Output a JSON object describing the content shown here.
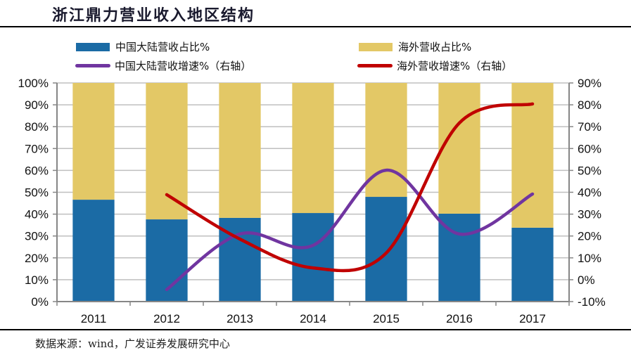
{
  "header": {
    "title": "浙江鼎力营业收入地区结构"
  },
  "footer": {
    "source": "数据来源：wind，广发证券发展研究中心"
  },
  "colors": {
    "mainland_share": "#1B6BA5",
    "overseas_share": "#E3C866",
    "mainland_growth": "#7035A0",
    "overseas_growth": "#C00000",
    "grid": "#BFBFBF",
    "axis": "#868686"
  },
  "chart_data": {
    "type": "bar",
    "title": "浙江鼎力营业收入地区结构",
    "categories": [
      "2011",
      "2012",
      "2013",
      "2014",
      "2015",
      "2016",
      "2017"
    ],
    "stacked": true,
    "series": [
      {
        "name": "中国大陆营收占比%",
        "type": "bar",
        "axis": "left",
        "values": [
          46.6,
          37.6,
          38.3,
          40.5,
          47.9,
          40.2,
          33.8
        ]
      },
      {
        "name": "海外营收占比%",
        "type": "bar",
        "axis": "left",
        "values": [
          53.4,
          62.4,
          61.7,
          59.5,
          52.1,
          59.8,
          66.2
        ]
      },
      {
        "name": "中国大陆营收增速%（右轴）",
        "type": "line",
        "axis": "right",
        "values": [
          null,
          -4.5,
          20.9,
          15.7,
          50.1,
          20.9,
          39.2
        ]
      },
      {
        "name": "海外营收增速%（右轴）",
        "type": "line",
        "axis": "right",
        "values": [
          null,
          38.9,
          18.6,
          5.4,
          12.2,
          71.7,
          80.4
        ]
      }
    ],
    "ylim": [
      0,
      100
    ],
    "y2lim": [
      -10,
      90
    ],
    "yticks": [
      "0%",
      "10%",
      "20%",
      "30%",
      "40%",
      "50%",
      "60%",
      "70%",
      "80%",
      "90%",
      "100%"
    ],
    "y2ticks": [
      "-10%",
      "0%",
      "10%",
      "20%",
      "30%",
      "40%",
      "50%",
      "60%",
      "70%",
      "80%",
      "90%"
    ],
    "xlabel": "",
    "ylabel": "",
    "y2label": "",
    "grid": true,
    "legend_position": "top"
  }
}
